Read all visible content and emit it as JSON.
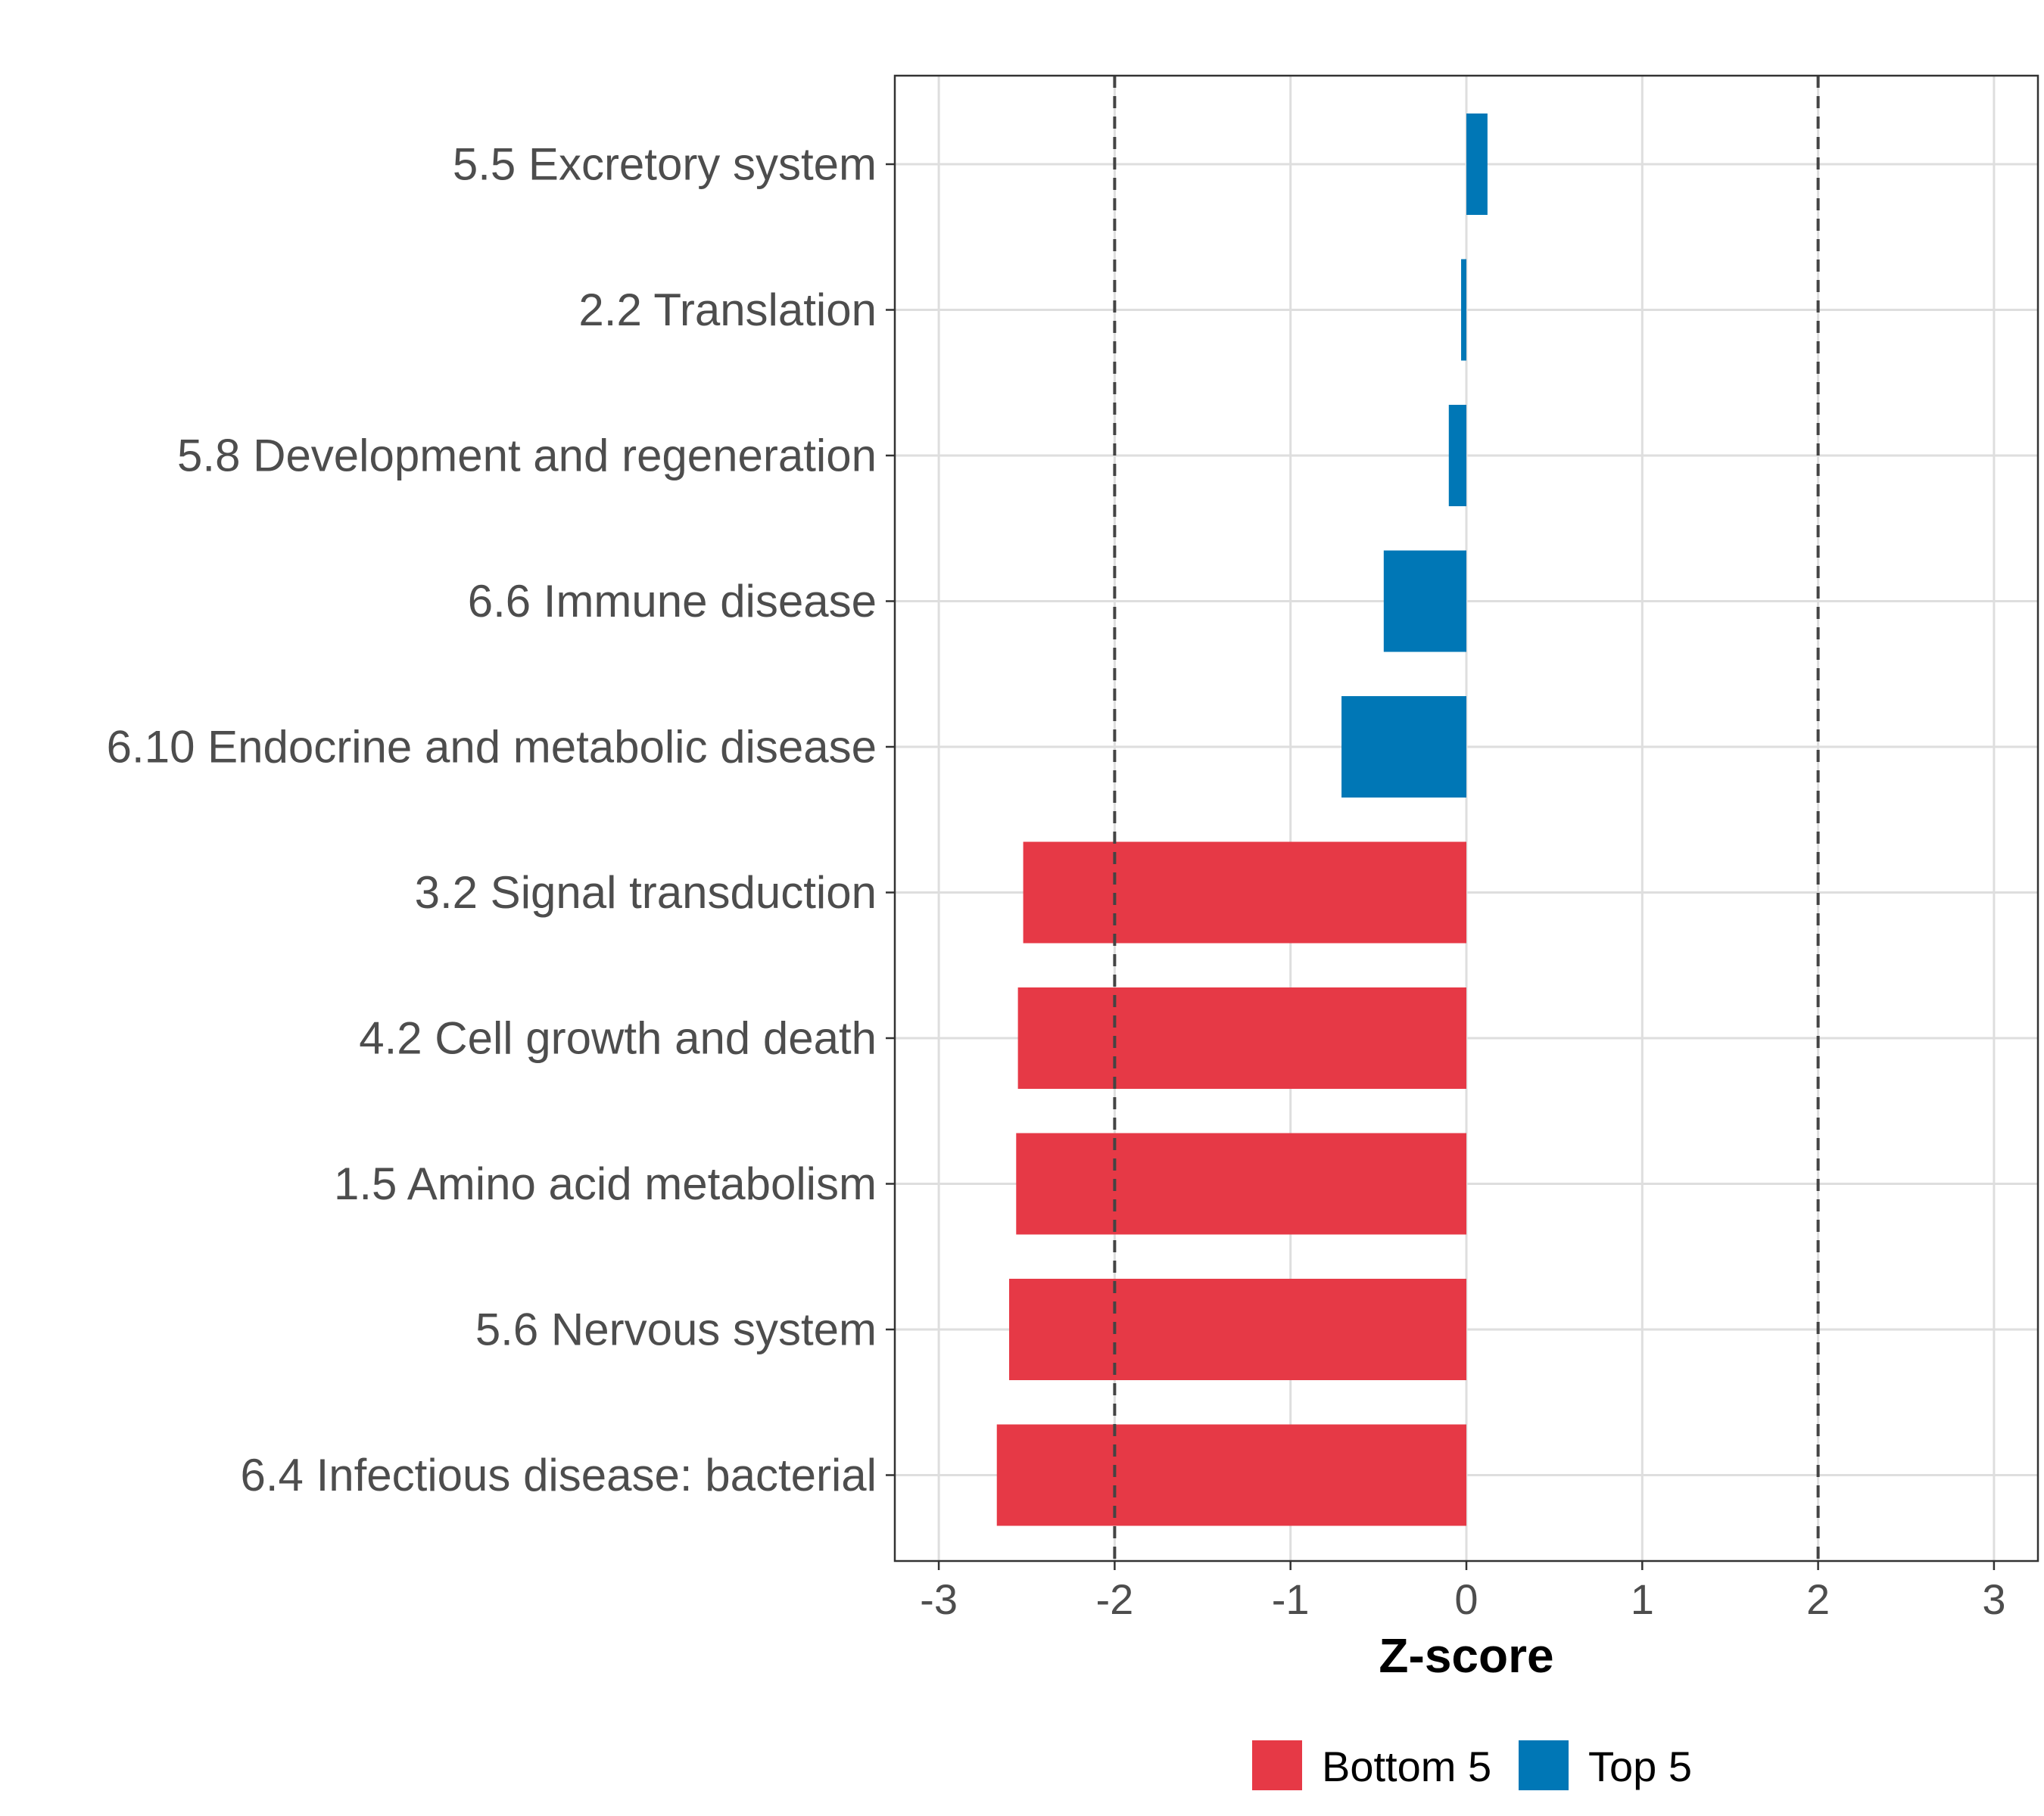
{
  "chart_data": {
    "type": "bar",
    "orientation": "horizontal",
    "title": "",
    "xlabel": "Z-score",
    "ylabel": "",
    "xlim": [
      -3.25,
      3.25
    ],
    "x_ticks": [
      -3,
      -2,
      -1,
      0,
      1,
      2,
      3
    ],
    "x_tick_labels": [
      "-3",
      "-2",
      "-1",
      "0",
      "1",
      "2",
      "3"
    ],
    "reference_lines": [
      -2,
      2
    ],
    "grid": true,
    "legend_position": "bottom",
    "categories": [
      "5.5 Excretory system",
      "2.2 Translation",
      "5.8 Development and regeneration",
      "6.6 Immune disease",
      "6.10 Endocrine and metabolic disease",
      "3.2 Signal transduction",
      "4.2 Cell growth and death",
      "1.5 Amino acid metabolism",
      "5.6 Nervous system",
      "6.4 Infectious disease: bacterial"
    ],
    "values": [
      0.12,
      -0.03,
      -0.1,
      -0.47,
      -0.71,
      -2.52,
      -2.55,
      -2.56,
      -2.6,
      -2.67
    ],
    "groups": [
      "Top 5",
      "Top 5",
      "Top 5",
      "Top 5",
      "Top 5",
      "Bottom 5",
      "Bottom 5",
      "Bottom 5",
      "Bottom 5",
      "Bottom 5"
    ],
    "series": [
      {
        "name": "Bottom 5",
        "color": "#e63946"
      },
      {
        "name": "Top 5",
        "color": "#0077b6"
      }
    ]
  }
}
